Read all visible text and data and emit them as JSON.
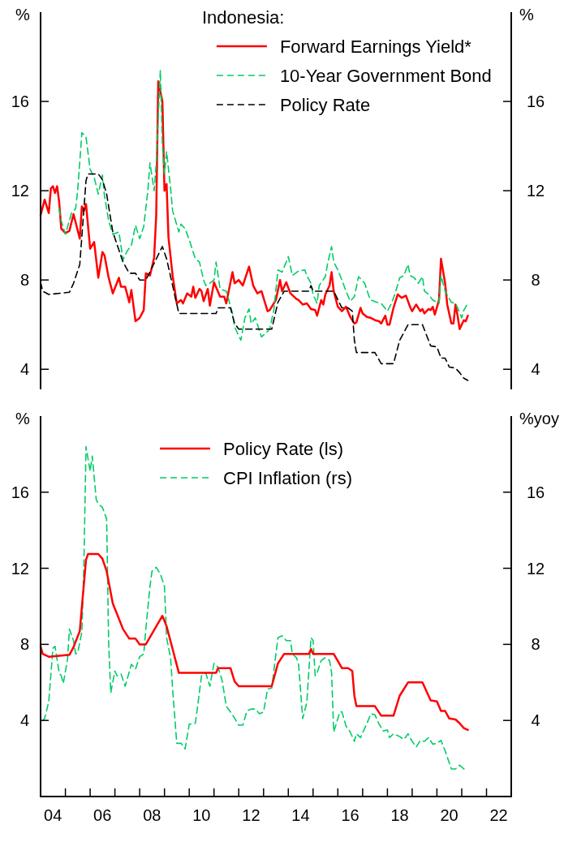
{
  "chart_data": [
    {
      "type": "line",
      "legend_title": "Indonesia:",
      "ylabel": "%",
      "y2label": "%",
      "xlim": [
        "2004-01",
        "2023-01"
      ],
      "ylim": [
        3.1,
        20
      ],
      "yticks": [
        4,
        8,
        12,
        16
      ],
      "y2lim": [
        3.1,
        20
      ],
      "y2ticks": [
        4,
        8,
        12,
        16
      ],
      "tick_labels": "y",
      "legend": "top right",
      "grid": false,
      "series": [
        {
          "name": "Forward Earnings Yield*",
          "color": "#ff0000",
          "line_style": "solid",
          "x": [
            "2004-01",
            "2004-03",
            "2004-05",
            "2004-06",
            "2004-07",
            "2004-08",
            "2004-09",
            "2004-10",
            "2004-11",
            "2005-01",
            "2005-03",
            "2005-05",
            "2005-08",
            "2005-09",
            "2005-10",
            "2005-11",
            "2006-01",
            "2006-03",
            "2006-05",
            "2006-07",
            "2006-08",
            "2006-10",
            "2006-12",
            "2007-03",
            "2007-04",
            "2007-06",
            "2007-08",
            "2007-09",
            "2007-11",
            "2008-01",
            "2008-03",
            "2008-04",
            "2008-06",
            "2008-08",
            "2008-09",
            "2008-10",
            "2008-12",
            "2009-01",
            "2009-02",
            "2009-03",
            "2009-05",
            "2009-07",
            "2009-09",
            "2009-10",
            "2009-12",
            "2010-02",
            "2010-03",
            "2010-04",
            "2010-06",
            "2010-07",
            "2010-08",
            "2010-10",
            "2010-11",
            "2011-01",
            "2011-04",
            "2011-06",
            "2011-07",
            "2011-10",
            "2011-11",
            "2012-01",
            "2012-03",
            "2012-06",
            "2012-08",
            "2012-10",
            "2012-12",
            "2013-03",
            "2013-04",
            "2013-07",
            "2013-09",
            "2013-10",
            "2013-12",
            "2014-02",
            "2014-05",
            "2014-06",
            "2014-08",
            "2014-10",
            "2014-12",
            "2015-02",
            "2015-03",
            "2015-05",
            "2015-06",
            "2015-07",
            "2015-09",
            "2015-10",
            "2015-11",
            "2016-01",
            "2016-03",
            "2016-05",
            "2016-07",
            "2016-09",
            "2016-10",
            "2016-12",
            "2017-01",
            "2017-03",
            "2017-05",
            "2017-07",
            "2017-09",
            "2017-10",
            "2017-12",
            "2018-01",
            "2018-02",
            "2018-04",
            "2018-06",
            "2018-08",
            "2018-10",
            "2018-12",
            "2019-01",
            "2019-03",
            "2019-05",
            "2019-06",
            "2019-07",
            "2019-09",
            "2019-10",
            "2019-11",
            "2019-12",
            "2020-02",
            "2020-03",
            "2020-05",
            "2020-06",
            "2020-08",
            "2020-09",
            "2020-10",
            "2020-11",
            "2020-12",
            "2021-02",
            "2021-03",
            "2021-04"
          ],
          "values": [
            10.9,
            11.6,
            11.0,
            12.1,
            12.2,
            11.9,
            12.2,
            11.5,
            10.3,
            10.1,
            10.2,
            10.95,
            9.85,
            11.3,
            11.1,
            11.4,
            9.4,
            9.7,
            8.1,
            9.25,
            9.1,
            8.1,
            7.4,
            8.1,
            7.7,
            7.7,
            7.0,
            7.55,
            6.15,
            6.3,
            6.65,
            8.3,
            8.2,
            9.0,
            10.9,
            16.9,
            16.0,
            12.0,
            12.3,
            9.9,
            8.2,
            6.95,
            7.1,
            6.95,
            7.4,
            7.25,
            7.7,
            7.2,
            7.6,
            7.5,
            7.05,
            7.6,
            6.85,
            7.9,
            7.25,
            7.25,
            6.95,
            8.35,
            7.85,
            8.0,
            7.75,
            8.6,
            7.75,
            7.4,
            7.5,
            6.6,
            6.65,
            7.1,
            8.0,
            7.5,
            7.9,
            7.4,
            7.15,
            7.1,
            6.9,
            6.95,
            6.7,
            6.65,
            6.4,
            7.1,
            6.9,
            7.35,
            7.75,
            8.35,
            7.5,
            6.8,
            6.6,
            6.8,
            6.35,
            6.05,
            6.1,
            6.75,
            6.5,
            6.35,
            6.3,
            6.2,
            6.15,
            6.05,
            6.4,
            6.0,
            6.0,
            6.75,
            7.35,
            7.2,
            7.3,
            6.8,
            6.6,
            6.9,
            6.6,
            6.7,
            6.5,
            6.7,
            6.65,
            6.8,
            6.45,
            7.1,
            8.95,
            7.85,
            6.9,
            6.05,
            6.05,
            6.9,
            6.4,
            5.8,
            6.2,
            6.15,
            6.4
          ]
        },
        {
          "name": "10-Year Government Bond",
          "color": "#00cc66",
          "line_style": "dashed",
          "x": [
            "2004-10",
            "2004-11",
            "2005-01",
            "2005-04",
            "2005-06",
            "2005-07",
            "2005-09",
            "2005-11",
            "2006-01",
            "2006-03",
            "2006-05",
            "2006-07",
            "2006-08",
            "2006-10",
            "2006-12",
            "2007-03",
            "2007-05",
            "2007-07",
            "2007-09",
            "2007-11",
            "2008-01",
            "2008-03",
            "2008-05",
            "2008-06",
            "2008-08",
            "2008-09",
            "2008-11",
            "2008-12",
            "2009-01",
            "2009-02",
            "2009-04",
            "2009-05",
            "2009-08",
            "2009-09",
            "2009-11",
            "2010-01",
            "2010-04",
            "2010-06",
            "2010-08",
            "2010-09",
            "2010-11",
            "2011-01",
            "2011-02",
            "2011-04",
            "2011-07",
            "2011-10",
            "2011-11",
            "2012-02",
            "2012-04",
            "2012-06",
            "2012-07",
            "2012-09",
            "2012-12",
            "2013-03",
            "2013-04",
            "2013-06",
            "2013-08",
            "2013-10",
            "2013-12",
            "2014-01",
            "2014-03",
            "2014-06",
            "2014-09",
            "2014-10",
            "2014-12",
            "2015-01",
            "2015-03",
            "2015-04",
            "2015-07",
            "2015-08",
            "2015-10",
            "2015-11",
            "2016-01",
            "2016-03",
            "2016-05",
            "2016-07",
            "2016-09",
            "2016-11",
            "2017-02",
            "2017-04",
            "2017-05",
            "2017-08",
            "2017-10",
            "2018-01",
            "2018-03",
            "2018-05",
            "2018-07",
            "2018-09",
            "2018-11",
            "2018-12",
            "2019-02",
            "2019-04",
            "2019-06",
            "2019-07",
            "2019-09",
            "2019-11",
            "2020-02",
            "2020-03",
            "2020-05",
            "2020-08",
            "2020-10",
            "2020-11",
            "2021-01",
            "2021-02",
            "2021-04"
          ],
          "values": [
            11.2,
            10.65,
            10.05,
            11.0,
            11.2,
            12.0,
            14.6,
            14.4,
            12.95,
            12.6,
            11.85,
            12.7,
            11.75,
            10.65,
            10.05,
            10.15,
            8.9,
            9.3,
            9.55,
            10.45,
            9.85,
            10.4,
            12.0,
            13.25,
            12.0,
            13.2,
            17.4,
            14.05,
            12.75,
            13.75,
            12.1,
            11.1,
            10.15,
            10.5,
            10.3,
            9.8,
            8.95,
            8.8,
            8.0,
            7.75,
            7.85,
            8.0,
            8.8,
            7.6,
            7.5,
            6.5,
            5.9,
            5.3,
            6.3,
            6.7,
            6.05,
            6.3,
            5.45,
            5.7,
            5.8,
            6.65,
            8.45,
            8.35,
            8.8,
            9.05,
            8.2,
            8.4,
            8.45,
            8.2,
            7.85,
            7.35,
            6.95,
            7.75,
            8.15,
            8.7,
            9.5,
            8.8,
            8.45,
            8.0,
            7.5,
            7.05,
            7.25,
            8.15,
            7.85,
            7.3,
            7.1,
            7.0,
            6.95,
            6.6,
            6.95,
            7.45,
            8.1,
            8.2,
            8.7,
            8.2,
            8.1,
            7.85,
            8.15,
            7.5,
            7.35,
            7.1,
            6.95,
            8.2,
            7.5,
            7.0,
            6.95,
            6.75,
            6.3,
            6.65,
            6.95
          ]
        },
        {
          "name": "Policy Rate",
          "color": "#000000",
          "line_style": "dashed",
          "x": [
            "2004-01",
            "2004-02",
            "2004-05",
            "2005-03",
            "2005-05",
            "2005-08",
            "2005-11",
            "2005-12",
            "2006-05",
            "2006-07",
            "2006-09",
            "2006-12",
            "2007-05",
            "2007-08",
            "2007-11",
            "2008-01",
            "2008-04",
            "2008-12",
            "2009-02",
            "2009-05",
            "2009-08",
            "2011-02",
            "2011-03",
            "2011-09",
            "2011-11",
            "2012-01",
            "2013-05",
            "2013-08",
            "2013-11",
            "2014-07",
            "2014-11",
            "2014-12",
            "2015-01",
            "2015-11",
            "2016-03",
            "2016-06",
            "2016-08",
            "2016-09",
            "2016-10",
            "2017-07",
            "2017-10",
            "2018-04",
            "2018-07",
            "2018-09",
            "2018-11",
            "2019-06",
            "2019-10",
            "2020-01",
            "2020-03",
            "2020-05",
            "2020-07",
            "2020-10",
            "2020-12",
            "2021-02",
            "2021-04"
          ],
          "values": [
            7.9,
            7.5,
            7.35,
            7.45,
            7.85,
            8.7,
            12.45,
            12.75,
            12.75,
            12.5,
            11.85,
            10.15,
            8.8,
            8.3,
            8.3,
            8.0,
            8.0,
            9.5,
            8.95,
            7.75,
            6.5,
            6.5,
            6.75,
            6.75,
            6.05,
            5.8,
            5.8,
            7.0,
            7.5,
            7.5,
            7.5,
            7.75,
            7.5,
            7.5,
            6.75,
            6.75,
            6.6,
            5.3,
            4.75,
            4.75,
            4.25,
            4.25,
            5.3,
            5.65,
            6.0,
            6.0,
            5.05,
            5.0,
            4.5,
            4.5,
            4.1,
            4.05,
            3.85,
            3.6,
            3.5
          ]
        }
      ]
    },
    {
      "type": "line",
      "ylabel": "%",
      "y2label": "%yoy",
      "xlim": [
        "2004-01",
        "2023-01"
      ],
      "xticks": [
        {
          "value": "2005-01",
          "label": null
        },
        {
          "value": "2006-01",
          "label": null
        },
        {
          "value": "2007-01",
          "label": null
        },
        {
          "value": "2008-01",
          "label": null
        },
        {
          "value": "2009-01",
          "label": null
        },
        {
          "value": "2010-01",
          "label": null
        },
        {
          "value": "2011-01",
          "label": null
        },
        {
          "value": "2012-01",
          "label": null
        },
        {
          "value": "2013-01",
          "label": null
        },
        {
          "value": "2014-01",
          "label": null
        },
        {
          "value": "2015-01",
          "label": null
        },
        {
          "value": "2016-01",
          "label": null
        },
        {
          "value": "2017-01",
          "label": null
        },
        {
          "value": "2018-01",
          "label": null
        },
        {
          "value": "2019-01",
          "label": null
        },
        {
          "value": "2020-01",
          "label": null
        },
        {
          "value": "2021-01",
          "label": null
        },
        {
          "value": "2022-01",
          "label": null
        },
        {
          "value": "2004-07-01",
          "label": "04"
        },
        {
          "value": "2006-07-01",
          "label": "06"
        },
        {
          "value": "2008-07-01",
          "label": "08"
        },
        {
          "value": "2010-07-01",
          "label": "10"
        },
        {
          "value": "2012-07-01",
          "label": "12"
        },
        {
          "value": "2014-07-01",
          "label": "14"
        },
        {
          "value": "2016-07-01",
          "label": "16"
        },
        {
          "value": "2018-07-01",
          "label": "18"
        },
        {
          "value": "2020-07-01",
          "label": "20"
        },
        {
          "value": "2022-07-01",
          "label": "22"
        }
      ],
      "ylim": [
        0,
        20
      ],
      "yticks": [
        4,
        8,
        12,
        16
      ],
      "y2lim": [
        0,
        20
      ],
      "y2ticks": [
        4,
        8,
        12,
        16
      ],
      "legend": "top",
      "grid": false,
      "series": [
        {
          "name": "Policy Rate (ls)",
          "color": "#ff0000",
          "line_style": "solid",
          "x": [
            "2004-01",
            "2004-02",
            "2004-05",
            "2005-03",
            "2005-05",
            "2005-08",
            "2005-11",
            "2005-12",
            "2006-05",
            "2006-07",
            "2006-09",
            "2006-12",
            "2007-05",
            "2007-08",
            "2007-11",
            "2008-01",
            "2008-04",
            "2008-12",
            "2009-02",
            "2009-05",
            "2009-08",
            "2011-02",
            "2011-03",
            "2011-09",
            "2011-11",
            "2012-01",
            "2013-05",
            "2013-08",
            "2013-11",
            "2014-07",
            "2014-11",
            "2014-12",
            "2015-01",
            "2015-11",
            "2016-03",
            "2016-06",
            "2016-08",
            "2016-09",
            "2016-10",
            "2017-07",
            "2017-10",
            "2018-04",
            "2018-07",
            "2018-09",
            "2018-11",
            "2019-06",
            "2019-10",
            "2020-01",
            "2020-03",
            "2020-05",
            "2020-07",
            "2020-10",
            "2020-12",
            "2021-02",
            "2021-04"
          ],
          "values": [
            7.9,
            7.5,
            7.35,
            7.45,
            7.85,
            8.7,
            12.45,
            12.75,
            12.75,
            12.5,
            11.85,
            10.15,
            8.8,
            8.3,
            8.3,
            8.0,
            8.0,
            9.5,
            8.95,
            7.75,
            6.5,
            6.5,
            6.75,
            6.75,
            6.05,
            5.8,
            5.8,
            7.0,
            7.5,
            7.5,
            7.5,
            7.75,
            7.5,
            7.5,
            6.75,
            6.75,
            6.6,
            5.3,
            4.75,
            4.75,
            4.25,
            4.25,
            5.3,
            5.65,
            6.0,
            6.0,
            5.05,
            5.0,
            4.5,
            4.5,
            4.1,
            4.05,
            3.85,
            3.6,
            3.5
          ]
        },
        {
          "name": "CPI Inflation (rs)",
          "color": "#00cc66",
          "line_style": "dashed",
          "axis": "y2",
          "x": [
            "2004-02",
            "2004-03",
            "2004-05",
            "2004-07",
            "2004-08",
            "2004-10",
            "2004-11",
            "2004-12",
            "2005-02",
            "2005-03",
            "2005-05",
            "2005-06",
            "2005-07",
            "2005-09",
            "2005-10",
            "2005-11",
            "2006-01",
            "2006-02",
            "2006-04",
            "2006-05",
            "2006-07",
            "2006-09",
            "2006-10",
            "2006-11",
            "2007-01",
            "2007-02",
            "2007-04",
            "2007-06",
            "2007-09",
            "2007-11",
            "2008-01",
            "2008-03",
            "2008-04",
            "2008-06",
            "2008-07",
            "2008-09",
            "2008-11",
            "2009-01",
            "2009-02",
            "2009-04",
            "2009-05",
            "2009-07",
            "2009-09",
            "2009-11",
            "2010-01",
            "2010-04",
            "2010-05",
            "2010-07",
            "2010-09",
            "2010-11",
            "2011-01",
            "2011-03",
            "2011-05",
            "2011-07",
            "2011-10",
            "2012-01",
            "2012-03",
            "2012-05",
            "2012-07",
            "2012-09",
            "2012-11",
            "2013-01",
            "2013-03",
            "2013-05",
            "2013-08",
            "2013-10",
            "2013-12",
            "2014-02",
            "2014-03",
            "2014-05",
            "2014-06",
            "2014-08",
            "2014-10",
            "2014-12",
            "2015-01",
            "2015-02",
            "2015-03",
            "2015-05",
            "2015-07",
            "2015-09",
            "2015-10",
            "2015-11",
            "2016-02",
            "2016-03",
            "2016-05",
            "2016-07",
            "2016-09",
            "2016-10",
            "2016-12",
            "2017-02",
            "2017-03",
            "2017-05",
            "2017-07",
            "2017-09",
            "2017-11",
            "2018-01",
            "2018-02",
            "2018-04",
            "2018-07",
            "2018-09",
            "2018-11",
            "2019-01",
            "2019-03",
            "2019-05",
            "2019-07",
            "2019-09",
            "2019-11",
            "2020-01",
            "2020-03",
            "2020-05",
            "2020-08",
            "2020-10",
            "2020-12",
            "2021-02",
            "2021-03"
          ],
          "values": [
            4.0,
            4.1,
            5.0,
            7.8,
            7.9,
            6.5,
            6.35,
            5.95,
            7.2,
            8.8,
            8.2,
            7.5,
            7.55,
            8.65,
            12.2,
            18.4,
            17.1,
            17.9,
            15.6,
            15.4,
            15.2,
            14.6,
            8.05,
            5.45,
            6.6,
            6.35,
            6.45,
            5.8,
            6.95,
            6.7,
            7.35,
            7.5,
            8.8,
            11.05,
            11.85,
            12.05,
            11.7,
            11.05,
            8.35,
            7.3,
            5.65,
            2.8,
            2.8,
            2.5,
            3.8,
            3.85,
            4.65,
            6.35,
            6.5,
            5.8,
            7.0,
            6.8,
            6.1,
            4.75,
            4.3,
            3.75,
            3.75,
            4.5,
            4.6,
            4.6,
            4.35,
            4.45,
            5.65,
            5.7,
            8.35,
            8.45,
            8.2,
            8.2,
            7.5,
            7.3,
            6.95,
            4.1,
            4.95,
            8.35,
            8.2,
            6.35,
            6.5,
            7.15,
            7.3,
            7.15,
            6.5,
            3.4,
            4.45,
            4.45,
            3.7,
            3.4,
            2.9,
            3.3,
            3.1,
            3.6,
            3.8,
            4.35,
            4.3,
            3.8,
            3.45,
            3.5,
            3.1,
            3.3,
            3.15,
            3.0,
            3.3,
            2.9,
            2.6,
            2.95,
            2.9,
            3.1,
            2.75,
            2.8,
            2.95,
            2.4,
            1.45,
            1.45,
            1.65,
            1.45,
            1.4
          ]
        }
      ]
    }
  ]
}
